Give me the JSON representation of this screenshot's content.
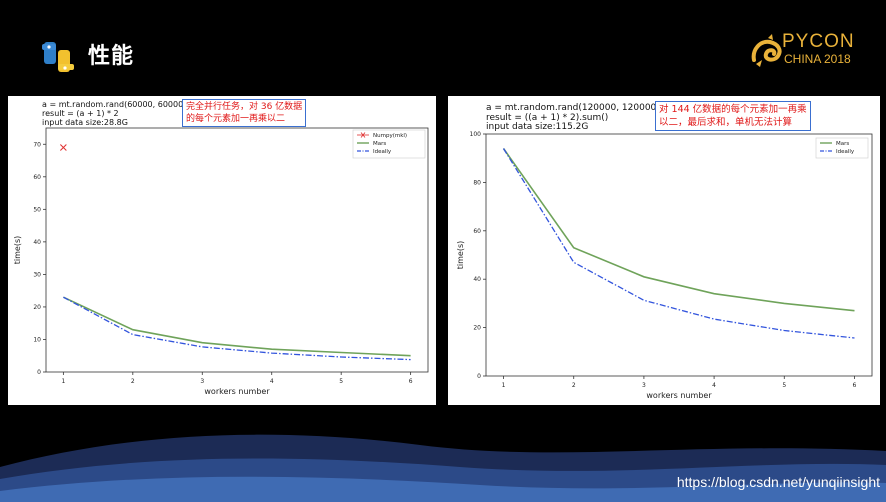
{
  "header": {
    "title": "性能",
    "brand_line1": "PYCON",
    "brand_line2": "CHINA 2018"
  },
  "left_panel": {
    "code": [
      "a = mt.random.rand(60000, 60000)",
      "result = (a + 1) * 2",
      "input data size:28.8G"
    ],
    "annotation": [
      "完全并行任务，对 36 亿数据",
      "的每个元素加一再乘以二"
    ]
  },
  "right_panel": {
    "code": [
      "a = mt.random.rand(120000, 120000)",
      "result = ((a + 1) * 2).sum()",
      "input data size:115.2G"
    ],
    "annotation": [
      "对 144 亿数据的每个元素加一再乘",
      "以二，最后求和，单机无法计算"
    ]
  },
  "watermark": "https://blog.csdn.net/yunqiinsight",
  "colors": {
    "mars": "#6fa35a",
    "ideally": "#3355dd",
    "numpy": "#e03030",
    "brand": "#e9b23a"
  },
  "chart_data": [
    {
      "type": "line",
      "xlabel": "workers number",
      "ylabel": "time(s)",
      "xlim": [
        0.75,
        6.25
      ],
      "ylim": [
        0,
        75
      ],
      "xticks": [
        1,
        2,
        3,
        4,
        5,
        6
      ],
      "yticks": [
        0,
        10,
        20,
        30,
        40,
        50,
        60,
        70
      ],
      "legend": [
        "Numpy(mkl)",
        "Mars",
        "Ideally"
      ],
      "legend_position": "top-right",
      "points": [
        {
          "name": "Numpy(mkl)",
          "x": 1,
          "y": 69
        }
      ],
      "series": [
        {
          "name": "Mars",
          "x": [
            1,
            2,
            3,
            4,
            5,
            6
          ],
          "values": [
            23,
            13,
            9,
            7,
            6,
            5
          ]
        },
        {
          "name": "Ideally",
          "x": [
            1,
            2,
            3,
            4,
            5,
            6
          ],
          "values": [
            23,
            11.5,
            7.7,
            5.8,
            4.6,
            3.8
          ]
        }
      ]
    },
    {
      "type": "line",
      "xlabel": "workers number",
      "ylabel": "time(s)",
      "xlim": [
        0.75,
        6.25
      ],
      "ylim": [
        0,
        100
      ],
      "xticks": [
        1,
        2,
        3,
        4,
        5,
        6
      ],
      "yticks": [
        0,
        20,
        40,
        60,
        80,
        100
      ],
      "legend": [
        "Mars",
        "Ideally"
      ],
      "legend_position": "top-right",
      "series": [
        {
          "name": "Mars",
          "x": [
            1,
            2,
            3,
            4,
            5,
            6
          ],
          "values": [
            94,
            53,
            41,
            34,
            30,
            27
          ]
        },
        {
          "name": "Ideally",
          "x": [
            1,
            2,
            3,
            4,
            5,
            6
          ],
          "values": [
            94,
            47,
            31.3,
            23.5,
            18.8,
            15.7
          ]
        }
      ]
    }
  ]
}
